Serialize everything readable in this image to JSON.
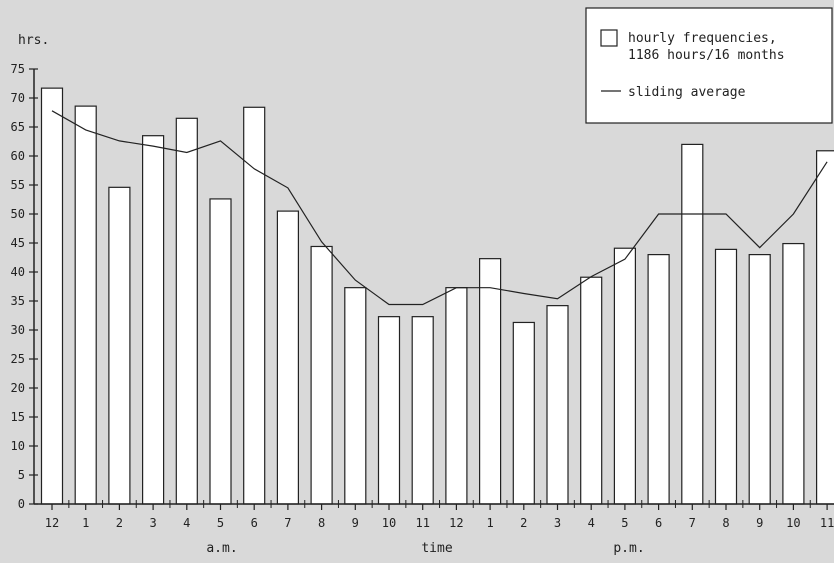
{
  "chart_data": {
    "type": "bar",
    "title": "",
    "ylabel": "hrs.",
    "xlabel": "time",
    "am_label": "a.m.",
    "pm_label": "p.m.",
    "ylim": [
      0,
      75
    ],
    "yticks": [
      0,
      5,
      10,
      15,
      20,
      25,
      30,
      35,
      40,
      45,
      50,
      55,
      60,
      65,
      70,
      75
    ],
    "grid": false,
    "legend_position": "top-right",
    "categories": [
      "12",
      "1",
      "2",
      "3",
      "4",
      "5",
      "6",
      "7",
      "8",
      "9",
      "10",
      "11",
      "12",
      "1",
      "2",
      "3",
      "4",
      "5",
      "6",
      "7",
      "8",
      "9",
      "10",
      "11"
    ],
    "series": [
      {
        "name": "hourly frequencies, 1186 hours/16 months",
        "type": "bar",
        "values": [
          71.7,
          68.6,
          54.6,
          63.5,
          66.5,
          52.6,
          68.4,
          50.5,
          44.4,
          37.3,
          32.3,
          32.3,
          37.3,
          42.3,
          31.3,
          34.2,
          39.1,
          44.1,
          43.0,
          62.0,
          43.9,
          43.0,
          44.9,
          60.9
        ]
      },
      {
        "name": "sliding average",
        "type": "line",
        "values": [
          67.8,
          64.5,
          62.6,
          61.7,
          60.6,
          62.6,
          57.8,
          54.5,
          45.2,
          38.6,
          34.4,
          34.4,
          37.3,
          37.3,
          36.3,
          35.4,
          39.2,
          42.2,
          50.0,
          50.0,
          50.0,
          44.2,
          50.0,
          59.0
        ]
      }
    ],
    "legend": {
      "bar_line1": "hourly frequencies,",
      "bar_line2": "1186 hours/16 months",
      "line_label": "sliding average"
    },
    "colors": {
      "background": "#d9d9d9",
      "bar_fill": "#ffffff",
      "ink": "#222222"
    }
  }
}
